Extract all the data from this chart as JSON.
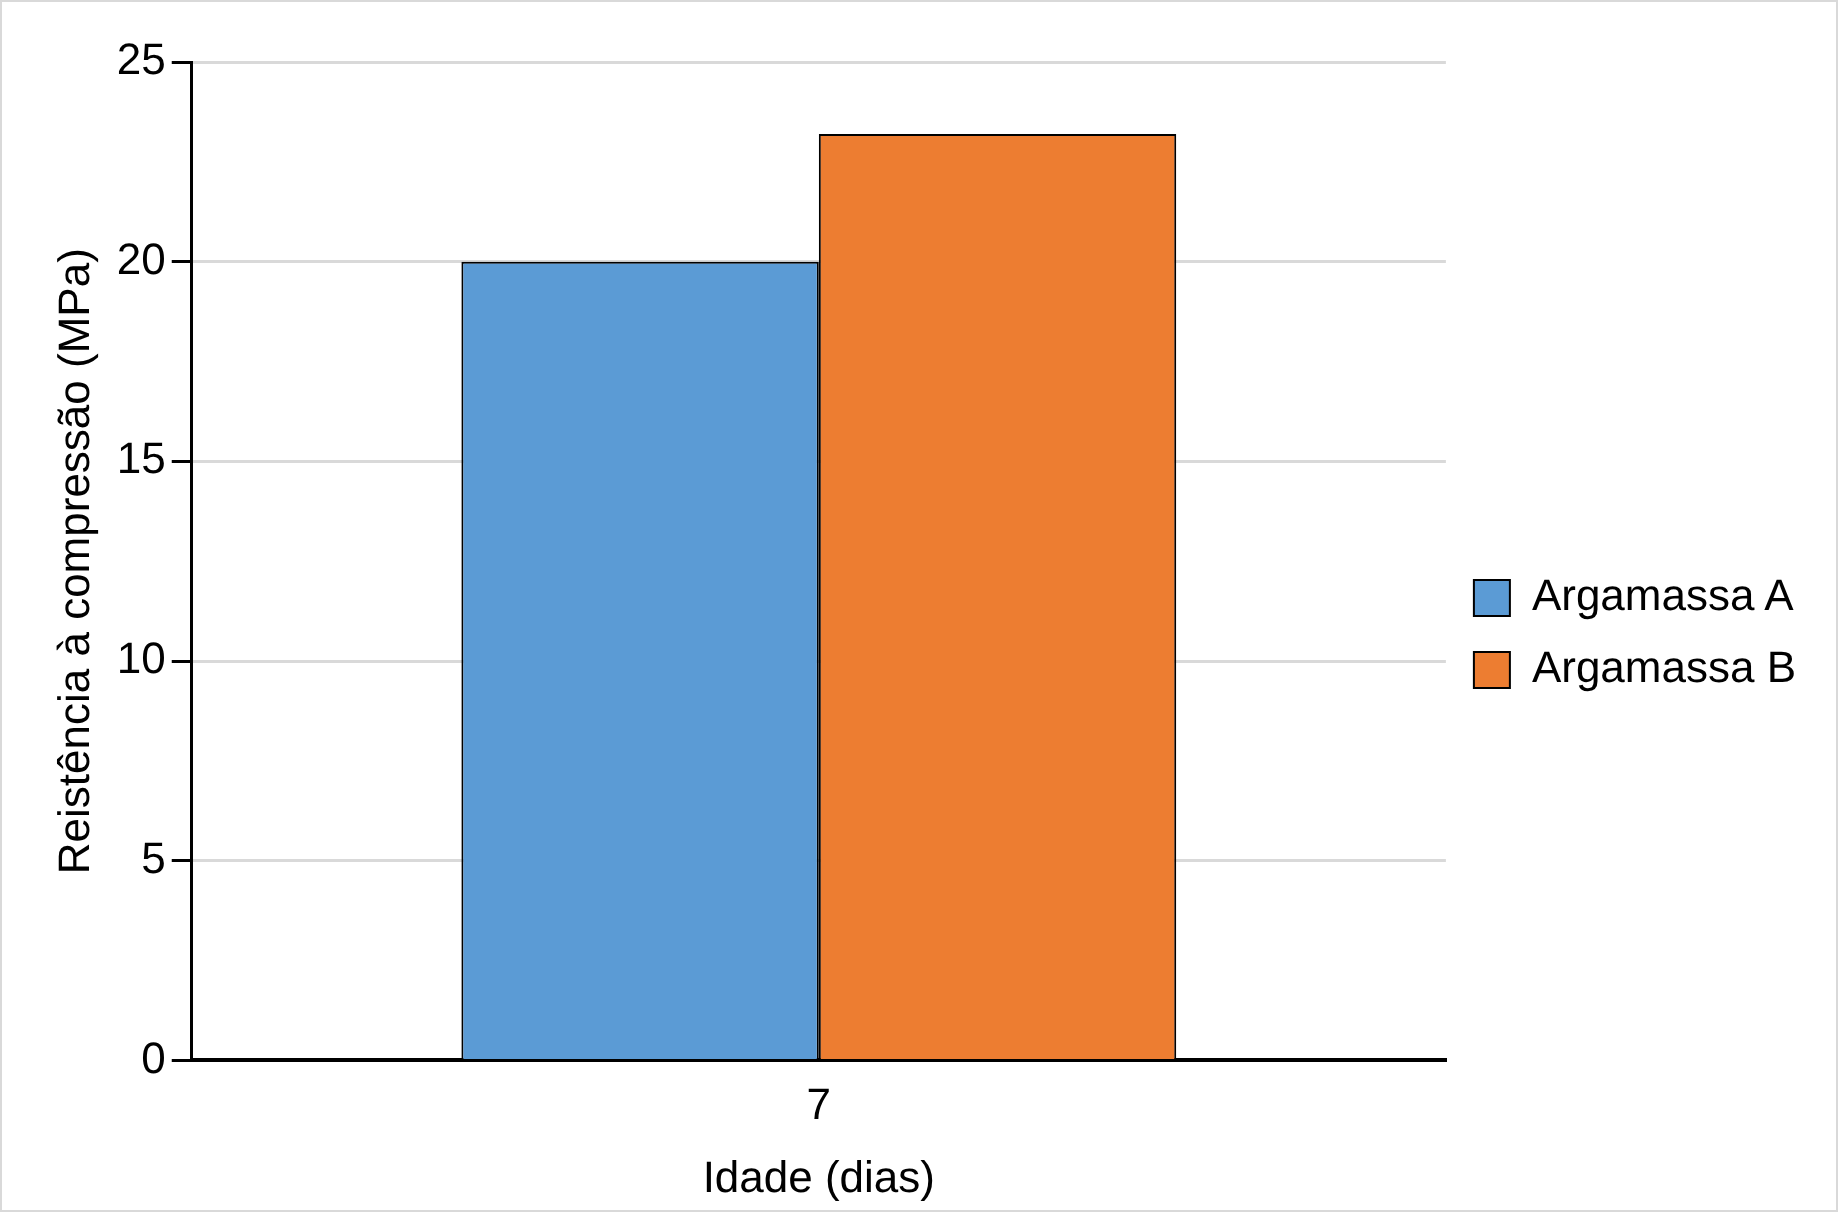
{
  "chart_data": {
    "type": "bar",
    "xlabel": "Idade (dias)",
    "ylabel": "Reistência à compressão (MPa)",
    "categories": [
      "7"
    ],
    "series": [
      {
        "name": "Argamassa A",
        "color": "#5b9bd5",
        "values": [
          20
        ]
      },
      {
        "name": "Argamassa B",
        "color": "#ed7d31",
        "values": [
          23.2
        ]
      }
    ],
    "ylim": [
      0,
      25
    ],
    "yticks": [
      0,
      5,
      10,
      15,
      20,
      25
    ],
    "grid": "y",
    "legend": "right"
  }
}
